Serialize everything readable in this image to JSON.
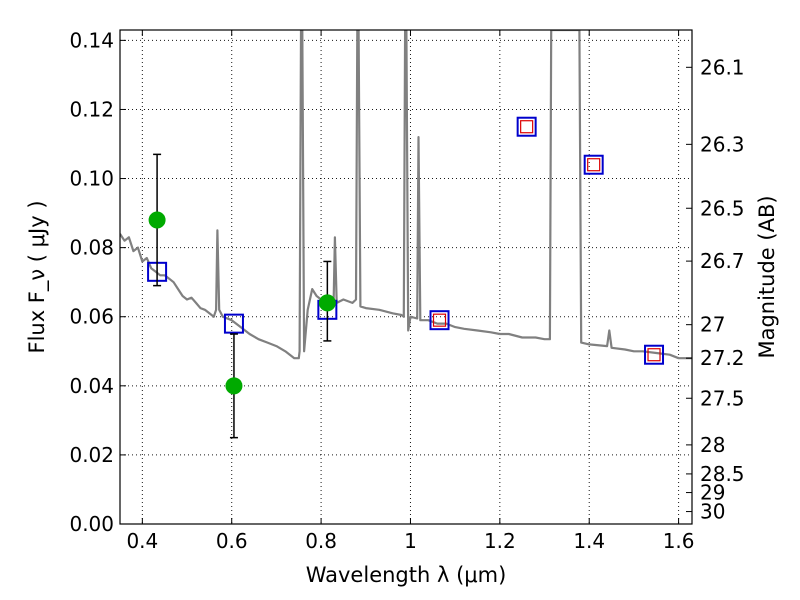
{
  "chart_data": {
    "type": "scatter",
    "xlabel": "Wavelength  λ (μm)",
    "ylabel": "Flux  F_ν  ( μJy )",
    "ylabel_right": "Magnitude (AB)",
    "xlim": [
      0.35,
      1.63
    ],
    "ylim": [
      0.0,
      0.143
    ],
    "x_ticks": [
      0.4,
      0.6,
      0.8,
      1.0,
      1.2,
      1.4,
      1.6
    ],
    "x_tick_labels": [
      "0.4",
      "0.6",
      "0.8",
      "1",
      "1.2",
      "1.4",
      "1.6"
    ],
    "y_ticks": [
      0.0,
      0.02,
      0.04,
      0.06,
      0.08,
      0.1,
      0.12,
      0.14
    ],
    "y_tick_labels": [
      "0.00",
      "0.02",
      "0.04",
      "0.06",
      "0.08",
      "0.10",
      "0.12",
      "0.14"
    ],
    "right_ticks": [
      {
        "label": "26.1",
        "flux": 0.1322
      },
      {
        "label": "26.3",
        "flux": 0.1099
      },
      {
        "label": "26.5",
        "flux": 0.0914
      },
      {
        "label": "26.7",
        "flux": 0.0761
      },
      {
        "label": "27",
        "flux": 0.0577
      },
      {
        "label": "27.2",
        "flux": 0.048
      },
      {
        "label": "27.5",
        "flux": 0.0364
      },
      {
        "label": "28",
        "flux": 0.0229
      },
      {
        "label": "28.5",
        "flux": 0.0145
      },
      {
        "label": "29",
        "flux": 0.0091
      },
      {
        "label": "30",
        "flux": 0.0036
      }
    ],
    "grid": true,
    "series": [
      {
        "kind": "line",
        "color": "#808080",
        "points": [
          [
            0.35,
            0.084
          ],
          [
            0.36,
            0.082
          ],
          [
            0.37,
            0.083
          ],
          [
            0.38,
            0.079
          ],
          [
            0.39,
            0.08
          ],
          [
            0.4,
            0.076
          ],
          [
            0.41,
            0.077
          ],
          [
            0.42,
            0.074
          ],
          [
            0.43,
            0.073
          ],
          [
            0.44,
            0.072
          ],
          [
            0.45,
            0.072
          ],
          [
            0.46,
            0.071
          ],
          [
            0.47,
            0.07
          ],
          [
            0.48,
            0.068
          ],
          [
            0.49,
            0.066
          ],
          [
            0.5,
            0.065
          ],
          [
            0.51,
            0.0655
          ],
          [
            0.52,
            0.064
          ],
          [
            0.53,
            0.0625
          ],
          [
            0.54,
            0.062
          ],
          [
            0.55,
            0.061
          ],
          [
            0.56,
            0.06
          ],
          [
            0.565,
            0.062
          ],
          [
            0.568,
            0.085
          ],
          [
            0.572,
            0.062
          ],
          [
            0.58,
            0.06
          ],
          [
            0.6,
            0.059
          ],
          [
            0.62,
            0.057
          ],
          [
            0.64,
            0.055
          ],
          [
            0.66,
            0.0535
          ],
          [
            0.68,
            0.0525
          ],
          [
            0.7,
            0.0515
          ],
          [
            0.72,
            0.05
          ],
          [
            0.74,
            0.048
          ],
          [
            0.75,
            0.048
          ],
          [
            0.752,
            0.05
          ],
          [
            0.755,
            0.143
          ],
          [
            0.758,
            0.143
          ],
          [
            0.762,
            0.05
          ],
          [
            0.77,
            0.062
          ],
          [
            0.78,
            0.068
          ],
          [
            0.79,
            0.066
          ],
          [
            0.8,
            0.065
          ],
          [
            0.81,
            0.0655
          ],
          [
            0.82,
            0.064
          ],
          [
            0.828,
            0.064
          ],
          [
            0.831,
            0.083
          ],
          [
            0.835,
            0.064
          ],
          [
            0.85,
            0.065
          ],
          [
            0.87,
            0.064
          ],
          [
            0.878,
            0.065
          ],
          [
            0.881,
            0.143
          ],
          [
            0.884,
            0.143
          ],
          [
            0.888,
            0.063
          ],
          [
            0.9,
            0.0625
          ],
          [
            0.93,
            0.062
          ],
          [
            0.96,
            0.061
          ],
          [
            0.98,
            0.0605
          ],
          [
            0.985,
            0.06
          ],
          [
            0.988,
            0.143
          ],
          [
            0.991,
            0.143
          ],
          [
            0.995,
            0.056
          ],
          [
            1.0,
            0.06
          ],
          [
            1.015,
            0.0595
          ],
          [
            1.018,
            0.112
          ],
          [
            1.022,
            0.059
          ],
          [
            1.04,
            0.059
          ],
          [
            1.06,
            0.058
          ],
          [
            1.08,
            0.058
          ],
          [
            1.1,
            0.057
          ],
          [
            1.12,
            0.0565
          ],
          [
            1.15,
            0.056
          ],
          [
            1.18,
            0.0555
          ],
          [
            1.2,
            0.055
          ],
          [
            1.22,
            0.055
          ],
          [
            1.25,
            0.054
          ],
          [
            1.28,
            0.054
          ],
          [
            1.3,
            0.0535
          ],
          [
            1.312,
            0.0535
          ],
          [
            1.315,
            0.143
          ],
          [
            1.378,
            0.143
          ],
          [
            1.382,
            0.0525
          ],
          [
            1.4,
            0.052
          ],
          [
            1.44,
            0.0515
          ],
          [
            1.445,
            0.056
          ],
          [
            1.45,
            0.051
          ],
          [
            1.48,
            0.0505
          ],
          [
            1.5,
            0.05
          ],
          [
            1.52,
            0.05
          ],
          [
            1.55,
            0.0495
          ],
          [
            1.58,
            0.049
          ],
          [
            1.6,
            0.048
          ],
          [
            1.63,
            0.048
          ]
        ]
      },
      {
        "kind": "squares_model",
        "color": "#0000cc",
        "points": [
          [
            0.433,
            0.073
          ],
          [
            0.605,
            0.058
          ],
          [
            0.814,
            0.062
          ],
          [
            1.065,
            0.059
          ],
          [
            1.26,
            0.115
          ],
          [
            1.41,
            0.104
          ],
          [
            1.545,
            0.049
          ]
        ]
      },
      {
        "kind": "squares_observed",
        "color": "#dd0000",
        "points": [
          [
            1.065,
            0.059
          ],
          [
            1.26,
            0.115
          ],
          [
            1.41,
            0.104
          ],
          [
            1.545,
            0.049
          ]
        ]
      },
      {
        "kind": "points_with_errors",
        "color": "#00aa00",
        "points": [
          {
            "x": 0.433,
            "y": 0.088,
            "lo": 0.069,
            "hi": 0.107
          },
          {
            "x": 0.605,
            "y": 0.04,
            "lo": 0.025,
            "hi": 0.055
          },
          {
            "x": 0.814,
            "y": 0.064,
            "lo": 0.053,
            "hi": 0.076
          }
        ]
      }
    ]
  }
}
